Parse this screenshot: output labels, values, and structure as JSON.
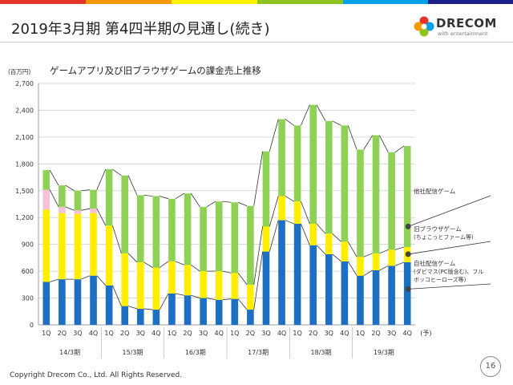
{
  "page": {
    "title": "2019年3月期 第4四半期の見通し(続き)",
    "copyright": "Copyright Drecom Co., Ltd. All Rights Reserved.",
    "page_number": "16"
  },
  "logo": {
    "name": "DRECOM",
    "tagline": "with entertainment"
  },
  "chart_data": {
    "type": "bar",
    "stacked": true,
    "title": "ゲームアプリ及び旧ブラウザゲームの課金売上推移",
    "unit_label": "(百万円)",
    "ylim": [
      0,
      2700
    ],
    "yticks": [
      "0",
      "300",
      "600",
      "900",
      "1,200",
      "1,500",
      "1,800",
      "2,100",
      "2,400",
      "2,700"
    ],
    "categories": [
      "1Q",
      "2Q",
      "3Q",
      "4Q",
      "1Q",
      "2Q",
      "3Q",
      "4Q",
      "1Q",
      "2Q",
      "3Q",
      "4Q",
      "1Q",
      "2Q",
      "3Q",
      "4Q",
      "1Q",
      "2Q",
      "3Q",
      "4Q",
      "1Q",
      "2Q",
      "3Q",
      "4Q"
    ],
    "x_suffix": "(予)",
    "period_labels": [
      "14/3期",
      "15/3期",
      "16/3期",
      "17/3期",
      "18/3期",
      "19/3期"
    ],
    "series": [
      {
        "name": "自社配信ゲーム (ダビマス(PC版含む)、フルボッコヒーローズ等)",
        "color": "#1c6fc2",
        "values": [
          480,
          510,
          510,
          550,
          440,
          210,
          180,
          170,
          350,
          330,
          300,
          280,
          290,
          170,
          820,
          1170,
          1130,
          890,
          790,
          710,
          550,
          610,
          660,
          700
        ]
      },
      {
        "name": "旧ブラウザゲーム (ちょこっとファーム等)",
        "color": "#ffee00",
        "values": [
          810,
          740,
          730,
          700,
          670,
          590,
          520,
          470,
          360,
          340,
          300,
          320,
          290,
          280,
          280,
          270,
          250,
          240,
          230,
          220,
          210,
          190,
          180,
          170
        ]
      },
      {
        "name": "pink",
        "color": "#f5c0d8",
        "values": [
          220,
          70,
          40,
          50,
          0,
          0,
          0,
          0,
          0,
          0,
          0,
          0,
          0,
          0,
          0,
          0,
          0,
          0,
          0,
          0,
          0,
          0,
          0,
          0
        ]
      },
      {
        "name": "他社配信ゲーム",
        "color": "#8fd155",
        "values": [
          220,
          240,
          220,
          210,
          630,
          870,
          750,
          800,
          700,
          800,
          720,
          780,
          790,
          880,
          840,
          860,
          850,
          1330,
          1260,
          1300,
          1200,
          1320,
          1090,
          1130
        ]
      }
    ],
    "legend": [
      {
        "lines": [
          "他社配信ゲーム"
        ]
      },
      {
        "lines": [
          "旧ブラウザゲーム",
          "(ちょこっとファーム等)"
        ]
      },
      {
        "lines": [
          "自社配信ゲーム",
          "(ダビマス(PC版含む)、フル",
          "ボッコヒーローズ等)"
        ]
      }
    ],
    "legend_placement": "right",
    "grid": true
  }
}
